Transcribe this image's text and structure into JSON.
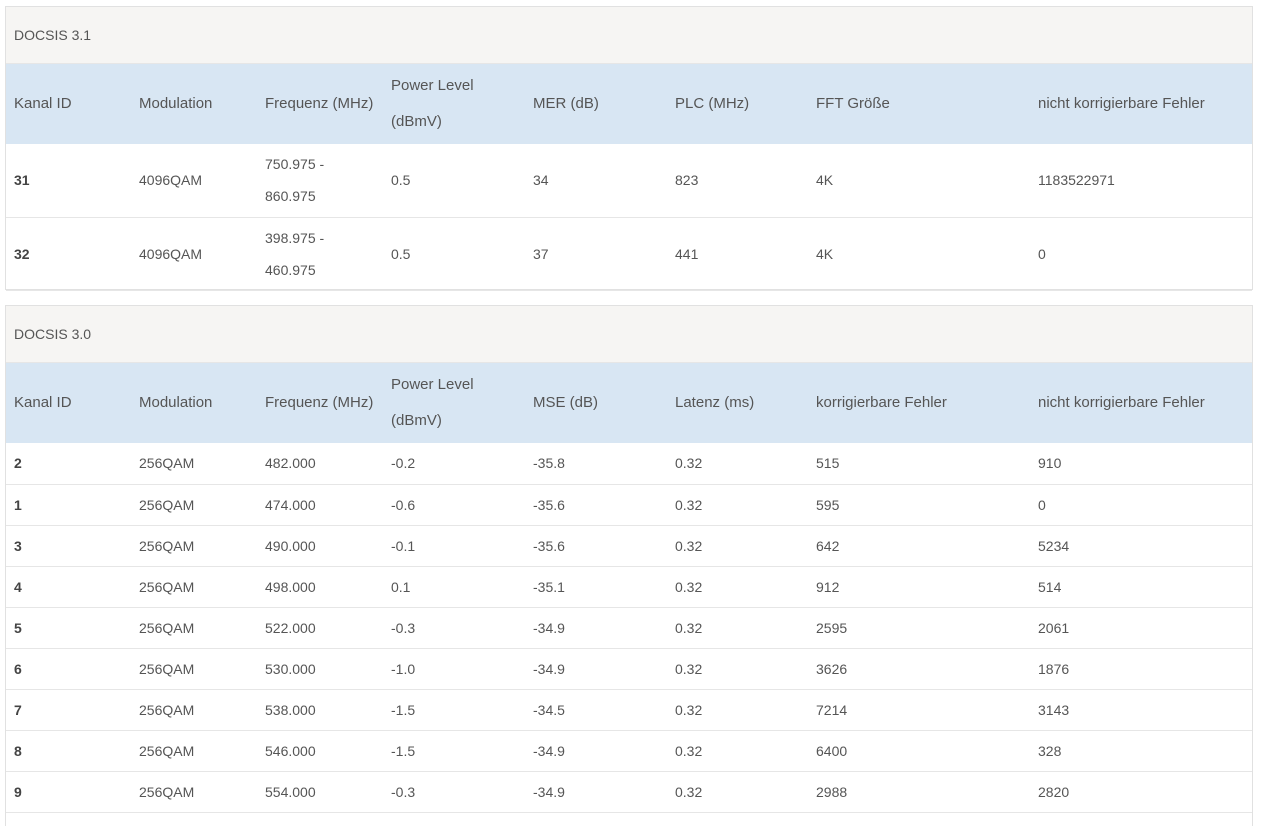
{
  "docsis31": {
    "title": "DOCSIS 3.1",
    "headers": [
      "Kanal ID",
      "Modulation",
      "Frequenz (MHz)",
      "Power Level (dBmV)",
      "MER (dB)",
      "PLC (MHz)",
      "FFT Größe",
      "nicht korrigierbare Fehler"
    ],
    "rows": [
      {
        "id": "31",
        "modulation": "4096QAM",
        "freq_a": "750.975 -",
        "freq_b": "860.975",
        "power": "0.5",
        "mer": "34",
        "plc": "823",
        "fft": "4K",
        "uncorr": "1183522971"
      },
      {
        "id": "32",
        "modulation": "4096QAM",
        "freq_a": "398.975 -",
        "freq_b": "460.975",
        "power": "0.5",
        "mer": "37",
        "plc": "441",
        "fft": "4K",
        "uncorr": "0"
      }
    ]
  },
  "docsis30": {
    "title": "DOCSIS 3.0",
    "headers": [
      "Kanal ID",
      "Modulation",
      "Frequenz (MHz)",
      "Power Level (dBmV)",
      "MSE (dB)",
      "Latenz (ms)",
      "korrigierbare Fehler",
      "nicht korrigierbare Fehler"
    ],
    "rows": [
      {
        "id": "2",
        "modulation": "256QAM",
        "freq": "482.000",
        "power": "-0.2",
        "mse": "-35.8",
        "latency": "0.32",
        "corr": "515",
        "uncorr": "910"
      },
      {
        "id": "1",
        "modulation": "256QAM",
        "freq": "474.000",
        "power": "-0.6",
        "mse": "-35.6",
        "latency": "0.32",
        "corr": "595",
        "uncorr": "0"
      },
      {
        "id": "3",
        "modulation": "256QAM",
        "freq": "490.000",
        "power": "-0.1",
        "mse": "-35.6",
        "latency": "0.32",
        "corr": "642",
        "uncorr": "5234"
      },
      {
        "id": "4",
        "modulation": "256QAM",
        "freq": "498.000",
        "power": "0.1",
        "mse": "-35.1",
        "latency": "0.32",
        "corr": "912",
        "uncorr": "514"
      },
      {
        "id": "5",
        "modulation": "256QAM",
        "freq": "522.000",
        "power": "-0.3",
        "mse": "-34.9",
        "latency": "0.32",
        "corr": "2595",
        "uncorr": "2061"
      },
      {
        "id": "6",
        "modulation": "256QAM",
        "freq": "530.000",
        "power": "-1.0",
        "mse": "-34.9",
        "latency": "0.32",
        "corr": "3626",
        "uncorr": "1876"
      },
      {
        "id": "7",
        "modulation": "256QAM",
        "freq": "538.000",
        "power": "-1.5",
        "mse": "-34.5",
        "latency": "0.32",
        "corr": "7214",
        "uncorr": "3143"
      },
      {
        "id": "8",
        "modulation": "256QAM",
        "freq": "546.000",
        "power": "-1.5",
        "mse": "-34.9",
        "latency": "0.32",
        "corr": "6400",
        "uncorr": "328"
      },
      {
        "id": "9",
        "modulation": "256QAM",
        "freq": "554.000",
        "power": "-0.3",
        "mse": "-34.9",
        "latency": "0.32",
        "corr": "2988",
        "uncorr": "2820"
      }
    ]
  }
}
